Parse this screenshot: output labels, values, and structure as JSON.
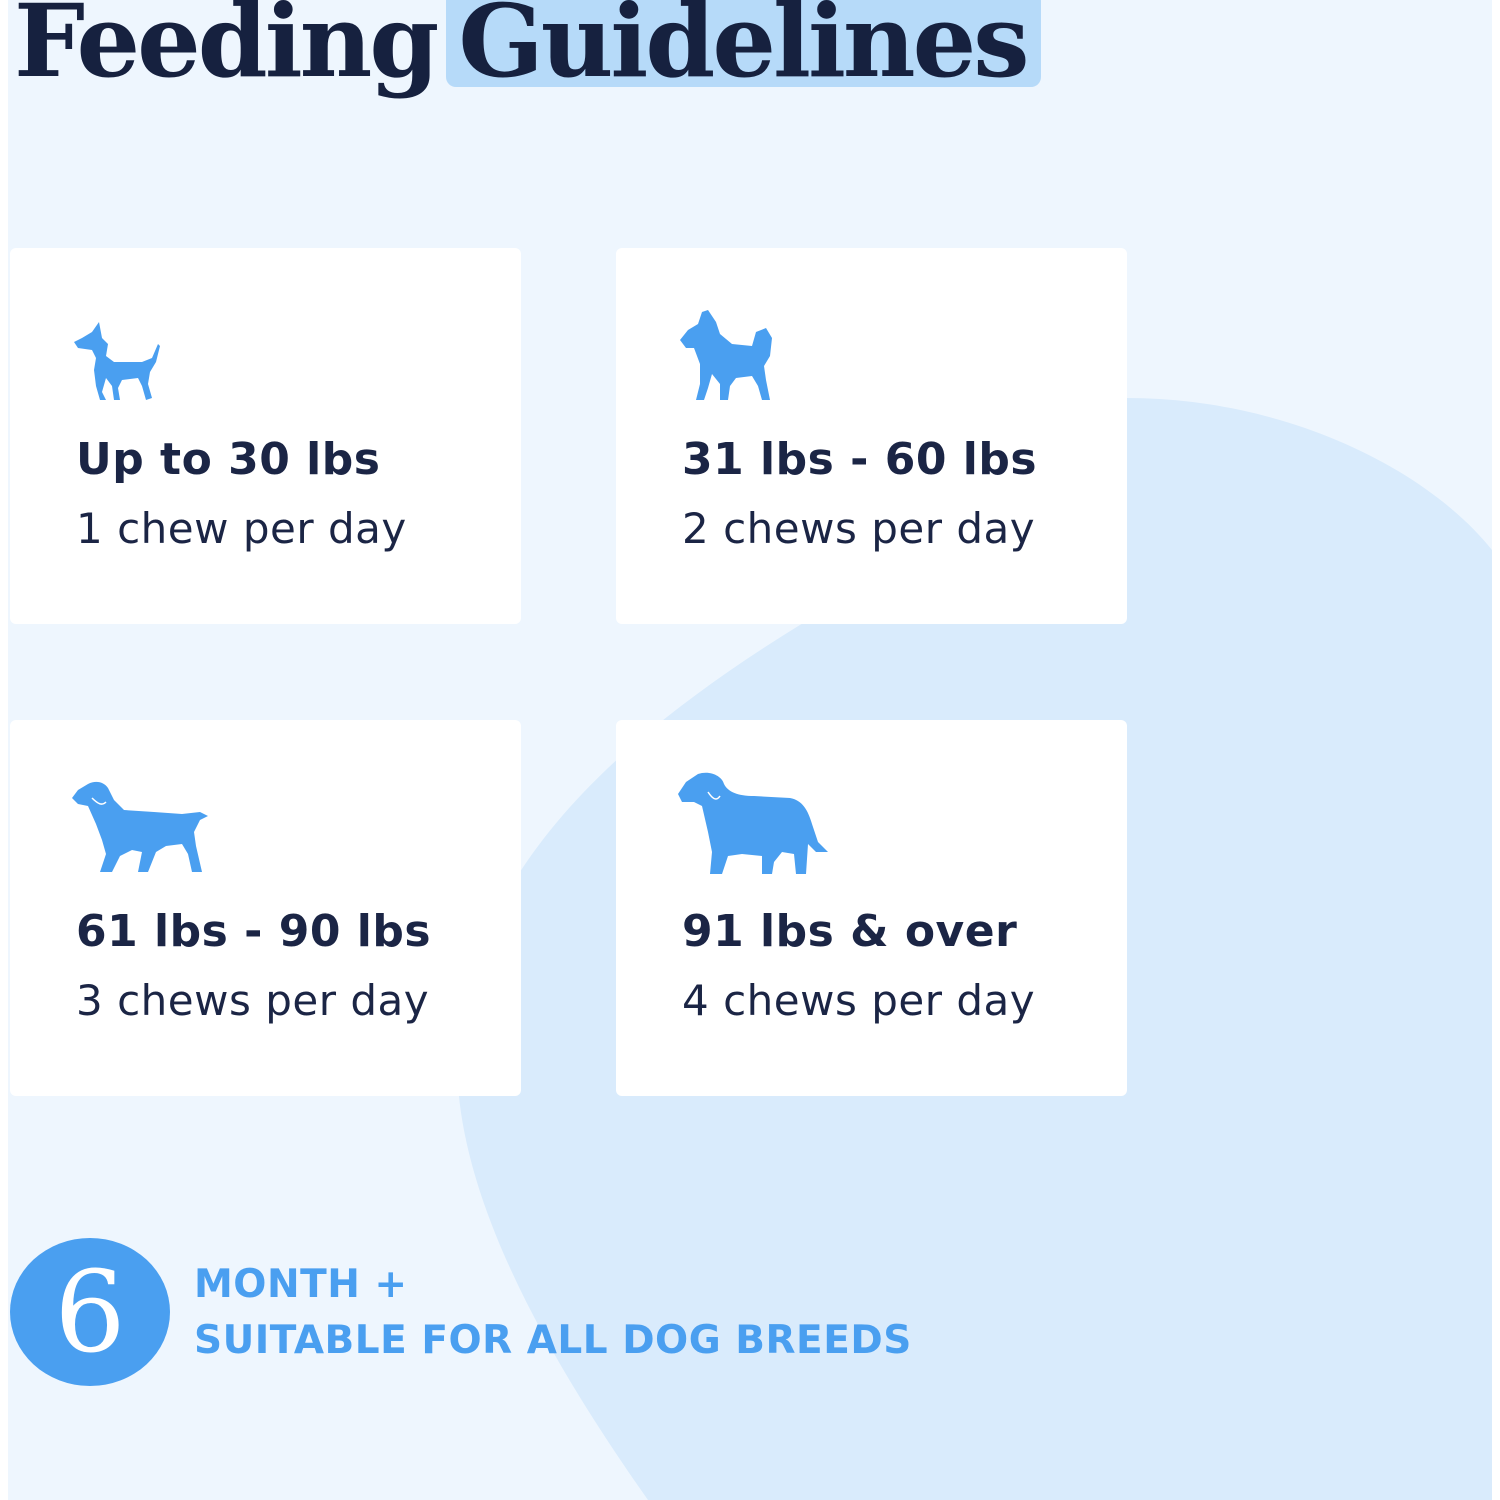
{
  "title": {
    "part1": "Feeding",
    "part2": "Guidelines"
  },
  "cards": [
    {
      "weight": "Up to 30 lbs",
      "dose": "1 chew per day",
      "icon": "small-dog-icon"
    },
    {
      "weight": "31 lbs - 60 lbs",
      "dose": "2 chews per day",
      "icon": "medium-dog-icon"
    },
    {
      "weight": "61 lbs - 90 lbs",
      "dose": "3 chews per day",
      "icon": "large-dog-icon"
    },
    {
      "weight": "91 lbs & over",
      "dose": "4 chews per day",
      "icon": "giant-dog-icon"
    }
  ],
  "badge": {
    "number": "6",
    "line1": "MONTH +",
    "line2": "SUITABLE FOR ALL DOG BREEDS"
  },
  "colors": {
    "background": "#eef6fe",
    "shape": "#d9ebfc",
    "title_highlight": "#b6daf9",
    "title_text": "#16213f",
    "accent": "#4a9ff0",
    "card": "#ffffff"
  }
}
